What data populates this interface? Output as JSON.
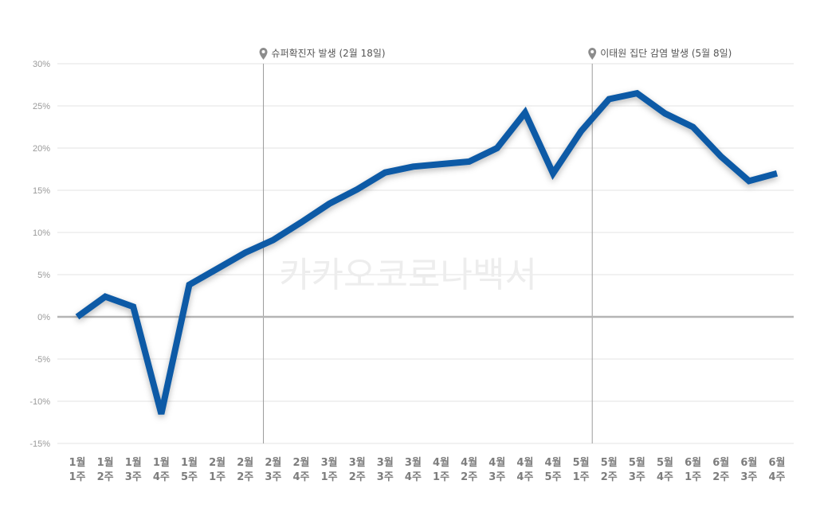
{
  "watermark": "카카오코로나백서",
  "chart_data": {
    "type": "line",
    "title": "",
    "xlabel": "",
    "ylabel": "",
    "ylim": [
      -15,
      30
    ],
    "yticks": [
      30,
      25,
      20,
      15,
      10,
      5,
      0,
      -5,
      -10,
      -15
    ],
    "ytick_labels": [
      "30%",
      "25%",
      "20%",
      "15%",
      "10%",
      "5%",
      "0%",
      "-5%",
      "-10%",
      "-15%"
    ],
    "grid": true,
    "categories": [
      [
        "1월",
        "1주"
      ],
      [
        "1월",
        "2주"
      ],
      [
        "1월",
        "3주"
      ],
      [
        "1월",
        "4주"
      ],
      [
        "1월",
        "5주"
      ],
      [
        "2월",
        "1주"
      ],
      [
        "2월",
        "2주"
      ],
      [
        "2월",
        "3주"
      ],
      [
        "2월",
        "4주"
      ],
      [
        "3월",
        "1주"
      ],
      [
        "3월",
        "2주"
      ],
      [
        "3월",
        "3주"
      ],
      [
        "3월",
        "4주"
      ],
      [
        "4월",
        "1주"
      ],
      [
        "4월",
        "2주"
      ],
      [
        "4월",
        "3주"
      ],
      [
        "4월",
        "4주"
      ],
      [
        "4월",
        "5주"
      ],
      [
        "5월",
        "1주"
      ],
      [
        "5월",
        "2주"
      ],
      [
        "5월",
        "3주"
      ],
      [
        "5월",
        "4주"
      ],
      [
        "6월",
        "1주"
      ],
      [
        "6월",
        "2주"
      ],
      [
        "6월",
        "3주"
      ],
      [
        "6월",
        "4주"
      ]
    ],
    "series": [
      {
        "color": "#0b5aa6",
        "values": [
          0.0,
          2.4,
          1.2,
          -11.5,
          3.8,
          5.7,
          7.6,
          9.1,
          11.2,
          13.4,
          15.1,
          17.1,
          17.8,
          18.1,
          18.4,
          20.0,
          24.2,
          17.0,
          22.0,
          25.8,
          26.5,
          24.1,
          22.5,
          19.0,
          16.1,
          17.0
        ]
      }
    ],
    "annotations": [
      {
        "label": "슈퍼확진자 발생 (2월 18일)",
        "x_index": 6.65,
        "icon": "map-pin-icon"
      },
      {
        "label": "이태원 집단 감염 발생 (5월 8일)",
        "x_index": 18.4,
        "icon": "map-pin-icon"
      }
    ],
    "colors": {
      "line": "#0b5aa6",
      "grid": "#e3e3e3",
      "zero_line": "#b5b5b5",
      "event_line": "#9a9a9a"
    }
  }
}
